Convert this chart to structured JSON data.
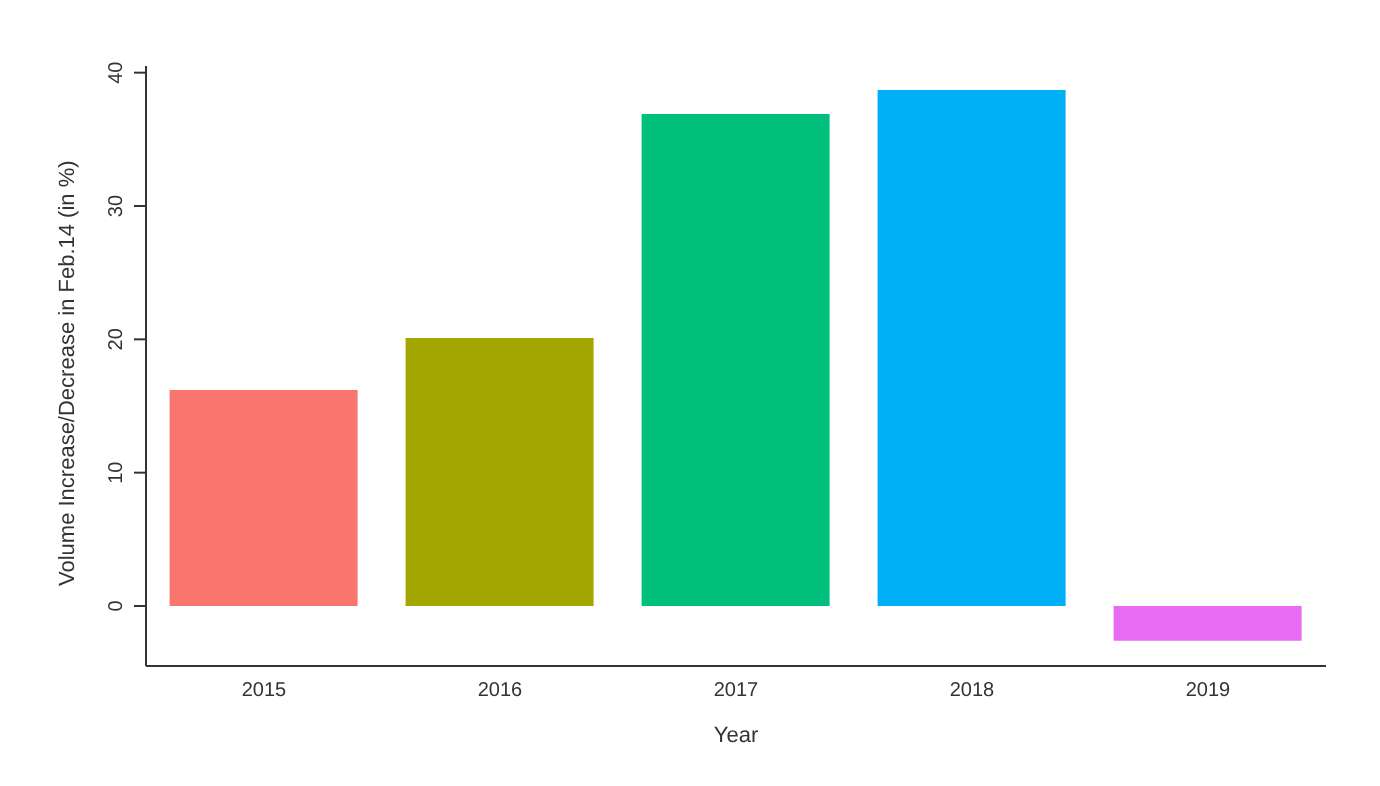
{
  "chart_data": {
    "type": "bar",
    "xlabel": "Year",
    "ylabel": "Volume Increase/Decrease in Feb.14 (in %)",
    "categories": [
      "2015",
      "2016",
      "2017",
      "2018",
      "2019"
    ],
    "values": [
      16.2,
      20.1,
      36.9,
      38.7,
      -2.6
    ],
    "colors": [
      "#f8766d",
      "#a3a500",
      "#00bf7d",
      "#00b0f6",
      "#e76bf3"
    ],
    "ylim": [
      -4.5,
      40.5
    ],
    "yticks": [
      0,
      10,
      20,
      30,
      40
    ],
    "grid": false,
    "legend": false
  }
}
